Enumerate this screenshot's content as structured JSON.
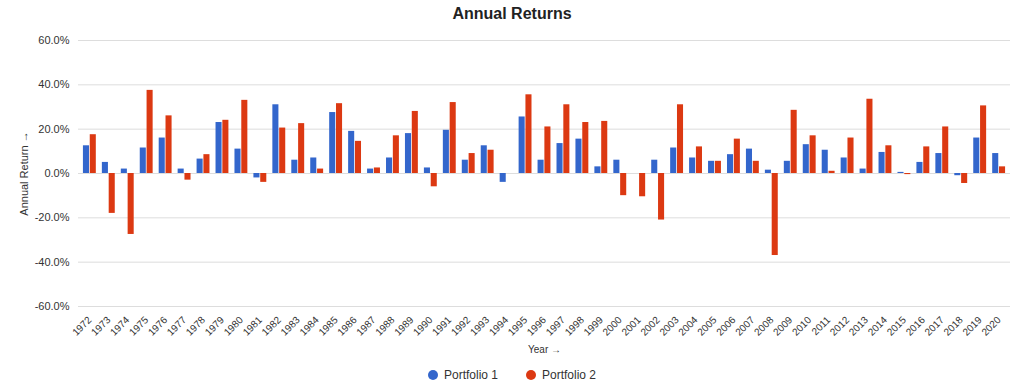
{
  "chart_data": {
    "type": "bar",
    "title": "Annual Returns",
    "x_label": "Year",
    "y_label": "Annual Return",
    "categories": [
      "1972",
      "1973",
      "1974",
      "1975",
      "1976",
      "1977",
      "1978",
      "1979",
      "1980",
      "1981",
      "1982",
      "1983",
      "1984",
      "1985",
      "1986",
      "1987",
      "1988",
      "1989",
      "1990",
      "1991",
      "1992",
      "1993",
      "1994",
      "1995",
      "1996",
      "1997",
      "1998",
      "1999",
      "2000",
      "2001",
      "2002",
      "2003",
      "2004",
      "2005",
      "2006",
      "2007",
      "2008",
      "2009",
      "2010",
      "2011",
      "2012",
      "2013",
      "2014",
      "2015",
      "2016",
      "2017",
      "2018",
      "2019",
      "2020"
    ],
    "series": [
      {
        "name": "Portfolio 1",
        "color": "#3366cc",
        "values": [
          12.5,
          5,
          2,
          11.5,
          16,
          2,
          6.5,
          23,
          11,
          -2,
          31,
          6,
          7,
          27.5,
          19,
          2,
          7,
          18,
          2.5,
          19.5,
          6,
          12.5,
          -4,
          25.5,
          6,
          13.5,
          15.5,
          3,
          6,
          0,
          6,
          11.5,
          7,
          5.5,
          8.5,
          11,
          1.5,
          5.5,
          13,
          10.5,
          7,
          2,
          9.5,
          0.5,
          5,
          9,
          -1,
          16,
          9
        ]
      },
      {
        "name": "Portfolio 2",
        "color": "#dc3912",
        "values": [
          17.5,
          -18,
          -27.5,
          37.5,
          26,
          -3,
          8.5,
          24,
          33,
          -4,
          20.5,
          22.5,
          2,
          31.5,
          14.5,
          2.5,
          17,
          28,
          -6,
          32,
          9,
          10.5,
          0,
          35.5,
          21,
          31,
          23,
          23.5,
          -10,
          -10.5,
          -21,
          31,
          12,
          5.5,
          15.5,
          5.5,
          -37,
          28.5,
          17,
          1,
          16,
          33.5,
          12.5,
          -0.5,
          12,
          21,
          -4.5,
          30.5,
          3
        ]
      }
    ],
    "ylim": [
      -60,
      60
    ],
    "yticks": [
      {
        "value": -60,
        "label": "-60.0%"
      },
      {
        "value": -40,
        "label": "-40.0%"
      },
      {
        "value": -20,
        "label": "-20.0%"
      },
      {
        "value": 0,
        "label": "0.0%"
      },
      {
        "value": 20,
        "label": "20.0%"
      },
      {
        "value": 40,
        "label": "40.0%"
      },
      {
        "value": 60,
        "label": "60.0%"
      }
    ],
    "grid": true,
    "legend": "bottom"
  }
}
